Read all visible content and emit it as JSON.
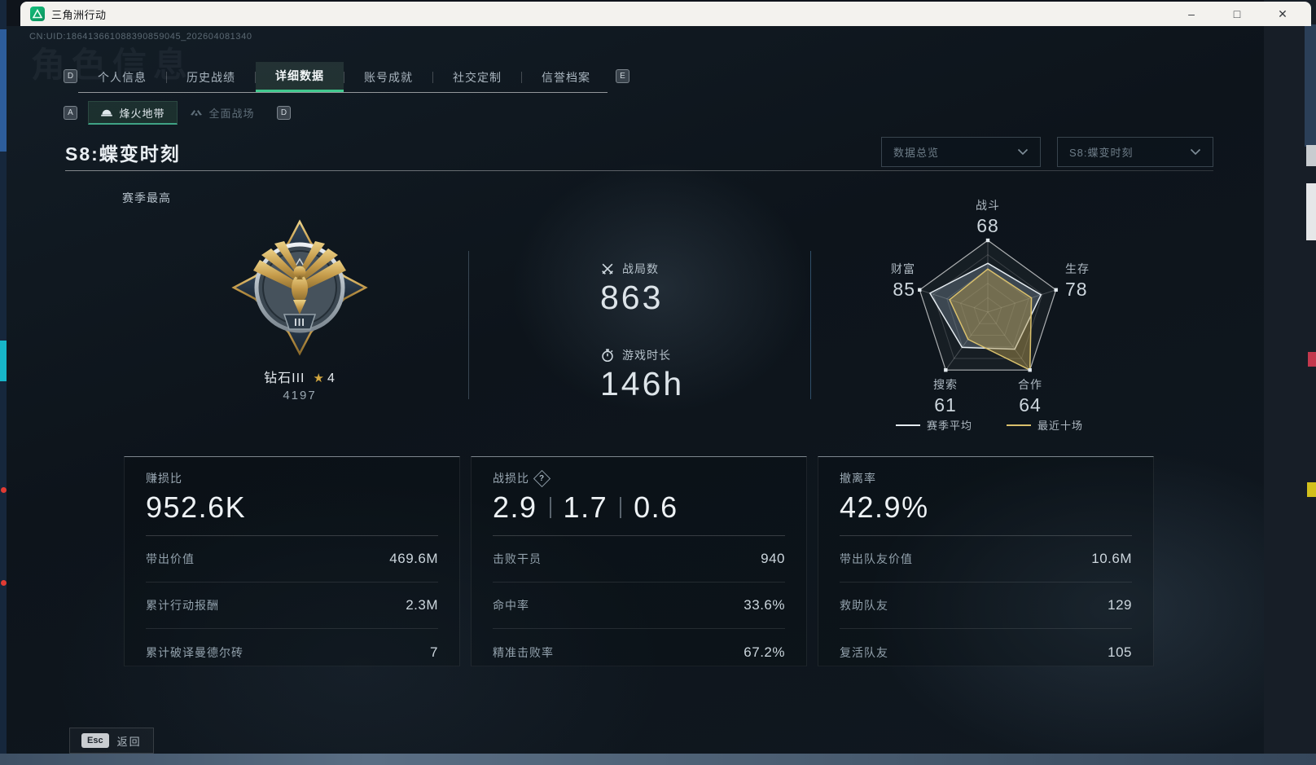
{
  "window": {
    "title": "三角洲行动",
    "uid": "CN:UID:186413661088390859045_202604081340",
    "controls": {
      "minimize": "–",
      "maximize": "□",
      "close": "✕"
    }
  },
  "ghost_title": "角色信息",
  "tabs": {
    "key_hint_left": "D",
    "key_hint_right": "E",
    "items": [
      {
        "label": "个人信息"
      },
      {
        "label": "历史战绩"
      },
      {
        "label": "详细数据"
      },
      {
        "label": "账号成就"
      },
      {
        "label": "社交定制"
      },
      {
        "label": "信誉档案"
      }
    ]
  },
  "subtabs": {
    "key_hint_left": "A",
    "key_hint_right": "D",
    "items": [
      {
        "label": "烽火地带"
      },
      {
        "label": "全面战场"
      }
    ]
  },
  "season": {
    "title": "S8:蝶变时刻",
    "filter_overview": "数据总览",
    "filter_season": "S8:蝶变时刻",
    "season_best_label": "赛季最高"
  },
  "rank": {
    "name": "钻石III",
    "star_icon": "★",
    "star_count": "4",
    "points": "4197",
    "tier_numeral": "III"
  },
  "overview": [
    {
      "icon": "crossed-swords-icon",
      "label": "战局数",
      "value": "863"
    },
    {
      "icon": "stopwatch-icon",
      "label": "游戏时长",
      "value": "146h"
    }
  ],
  "chart_data": {
    "type": "radar",
    "max": 100,
    "grid_levels": 5,
    "axes": [
      {
        "label": "战斗",
        "value": 68
      },
      {
        "label": "生存",
        "value": 78
      },
      {
        "label": "合作",
        "value": 64
      },
      {
        "label": "搜索",
        "value": 61
      },
      {
        "label": "财富",
        "value": 85
      }
    ],
    "series": [
      {
        "name": "赛季平均",
        "color": "#e4ebf0",
        "fill": "rgba(150,170,185,0.30)",
        "values": [
          68,
          78,
          64,
          61,
          85
        ]
      },
      {
        "name": "最近十场",
        "color": "#d9c06c",
        "fill": "rgba(182,156,80,0.45)",
        "values": [
          60,
          64,
          100,
          47,
          56
        ]
      }
    ],
    "legend_position": "bottom"
  },
  "cards": [
    {
      "title": "赚损比",
      "value": "952.6K",
      "rows": [
        {
          "label": "带出价值",
          "value": "469.6M"
        },
        {
          "label": "累计行动报酬",
          "value": "2.3M"
        },
        {
          "label": "累计破译曼德尔砖",
          "value": "7"
        }
      ]
    },
    {
      "title": "战损比",
      "help": "?",
      "values": [
        "2.9",
        "1.7",
        "0.6"
      ],
      "rows": [
        {
          "label": "击败干员",
          "value": "940"
        },
        {
          "label": "命中率",
          "value": "33.6%"
        },
        {
          "label": "精准击败率",
          "value": "67.2%"
        }
      ]
    },
    {
      "title": "撤离率",
      "value": "42.9%",
      "rows": [
        {
          "label": "带出队友价值",
          "value": "10.6M"
        },
        {
          "label": "救助队友",
          "value": "129"
        },
        {
          "label": "复活队友",
          "value": "105"
        }
      ]
    }
  ],
  "footer": {
    "esc_key": "Esc",
    "back_label": "返回"
  }
}
